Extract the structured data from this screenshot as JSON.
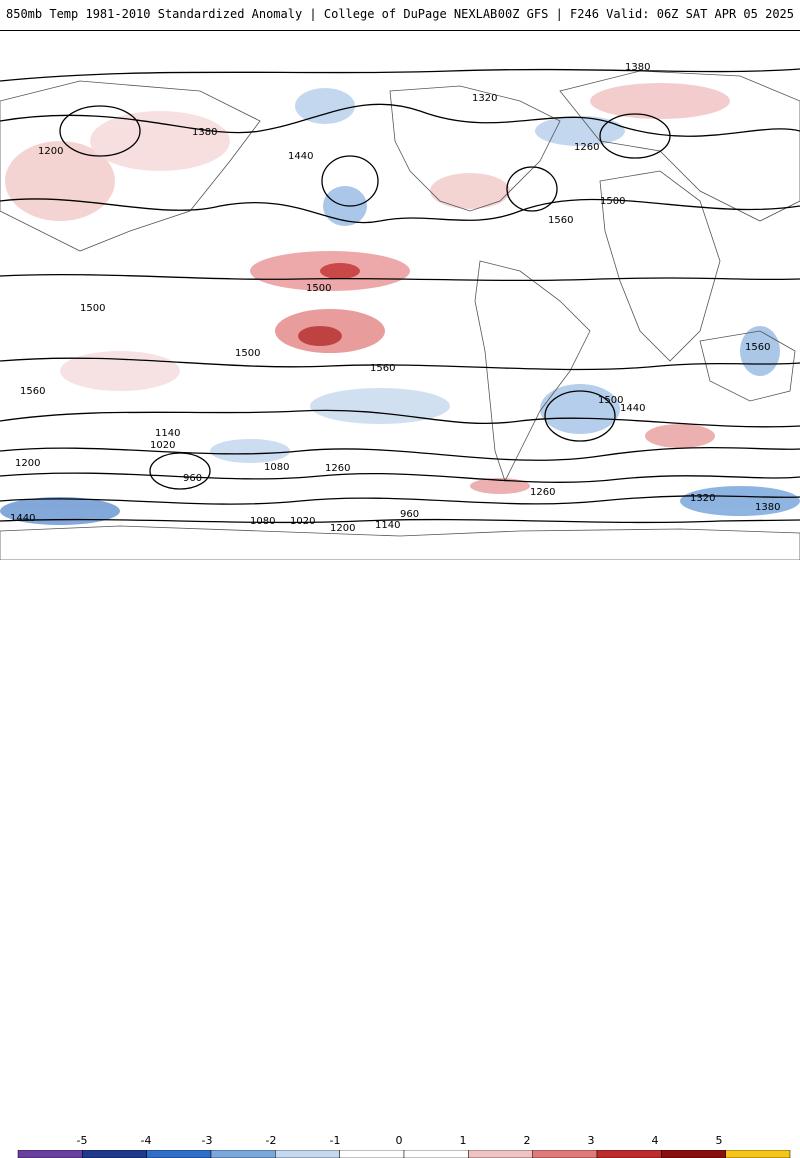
{
  "header": {
    "title": "850mb Temp 1981-2010 Standardized Anomaly | College of DuPage NEXLAB",
    "run_info": "00Z GFS | F246 Valid: 06Z SAT APR 05 2025"
  },
  "map": {
    "contour_labels": [
      "1380",
      "1440",
      "1500",
      "1560",
      "1320",
      "1260",
      "1200",
      "1140",
      "1080",
      "1020",
      "960"
    ]
  },
  "colorbar": {
    "ticks": [
      "-5",
      "-4",
      "-3",
      "-2",
      "-1",
      "0",
      "1",
      "2",
      "3",
      "4",
      "5"
    ],
    "colors": [
      "#6b3fa0",
      "#1f3a8a",
      "#2f6fc9",
      "#7aa7dc",
      "#c4d8ef",
      "#ffffff",
      "#ffffff",
      "#f0c2c2",
      "#e07a7a",
      "#c02a2a",
      "#8a0f0f",
      "#f5c518"
    ]
  }
}
